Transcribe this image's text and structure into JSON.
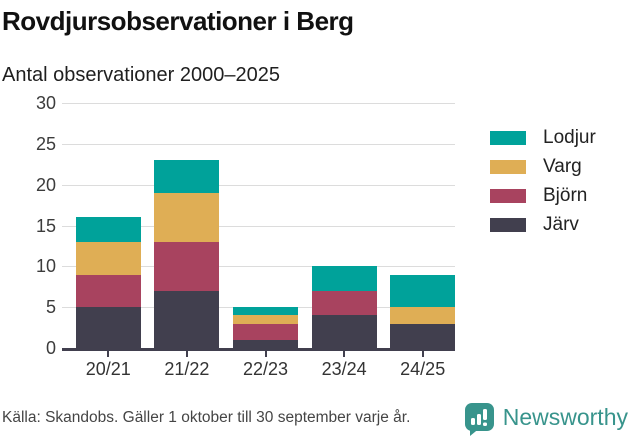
{
  "title": "Rovdjursobservationer i Berg",
  "subtitle": "Antal observationer 2000–2025",
  "legend": {
    "items": [
      {
        "label": "Lodjur",
        "color": "#00a29a"
      },
      {
        "label": "Varg",
        "color": "#dfae55"
      },
      {
        "label": "Björn",
        "color": "#a8435f"
      },
      {
        "label": "Järv",
        "color": "#413f4e"
      }
    ]
  },
  "footer": {
    "source": "Källa: Skandobs. Gäller 1 oktober till 30 september varje år.",
    "brand": "Newsworthy"
  },
  "colors": {
    "axis": "#413f4e",
    "grid": "#dcdcdc",
    "brand": "#38948c",
    "lodjur": "#00a29a",
    "varg": "#dfae55",
    "bjorn": "#a8435f",
    "jarv": "#413f4e"
  },
  "chart_data": {
    "type": "bar",
    "stacked": true,
    "title": "Rovdjursobservationer i Berg",
    "subtitle": "Antal observationer 2000–2025",
    "categories": [
      "20/21",
      "21/22",
      "22/23",
      "23/24",
      "24/25"
    ],
    "series": [
      {
        "name": "Järv",
        "color": "#413f4e",
        "values": [
          5,
          7,
          1,
          4,
          3
        ]
      },
      {
        "name": "Björn",
        "color": "#a8435f",
        "values": [
          4,
          6,
          2,
          3,
          0
        ]
      },
      {
        "name": "Varg",
        "color": "#dfae55",
        "values": [
          4,
          6,
          1,
          0,
          2
        ]
      },
      {
        "name": "Lodjur",
        "color": "#00a29a",
        "values": [
          3,
          4,
          1,
          3,
          4
        ]
      }
    ],
    "totals": [
      16,
      23,
      5,
      10,
      9
    ],
    "xlabel": "",
    "ylabel": "",
    "ylim": [
      0,
      30
    ],
    "yticks": [
      0,
      5,
      10,
      15,
      20,
      25,
      30
    ],
    "grid": true,
    "legend_position": "right",
    "legend_order": [
      "Lodjur",
      "Varg",
      "Björn",
      "Järv"
    ]
  }
}
